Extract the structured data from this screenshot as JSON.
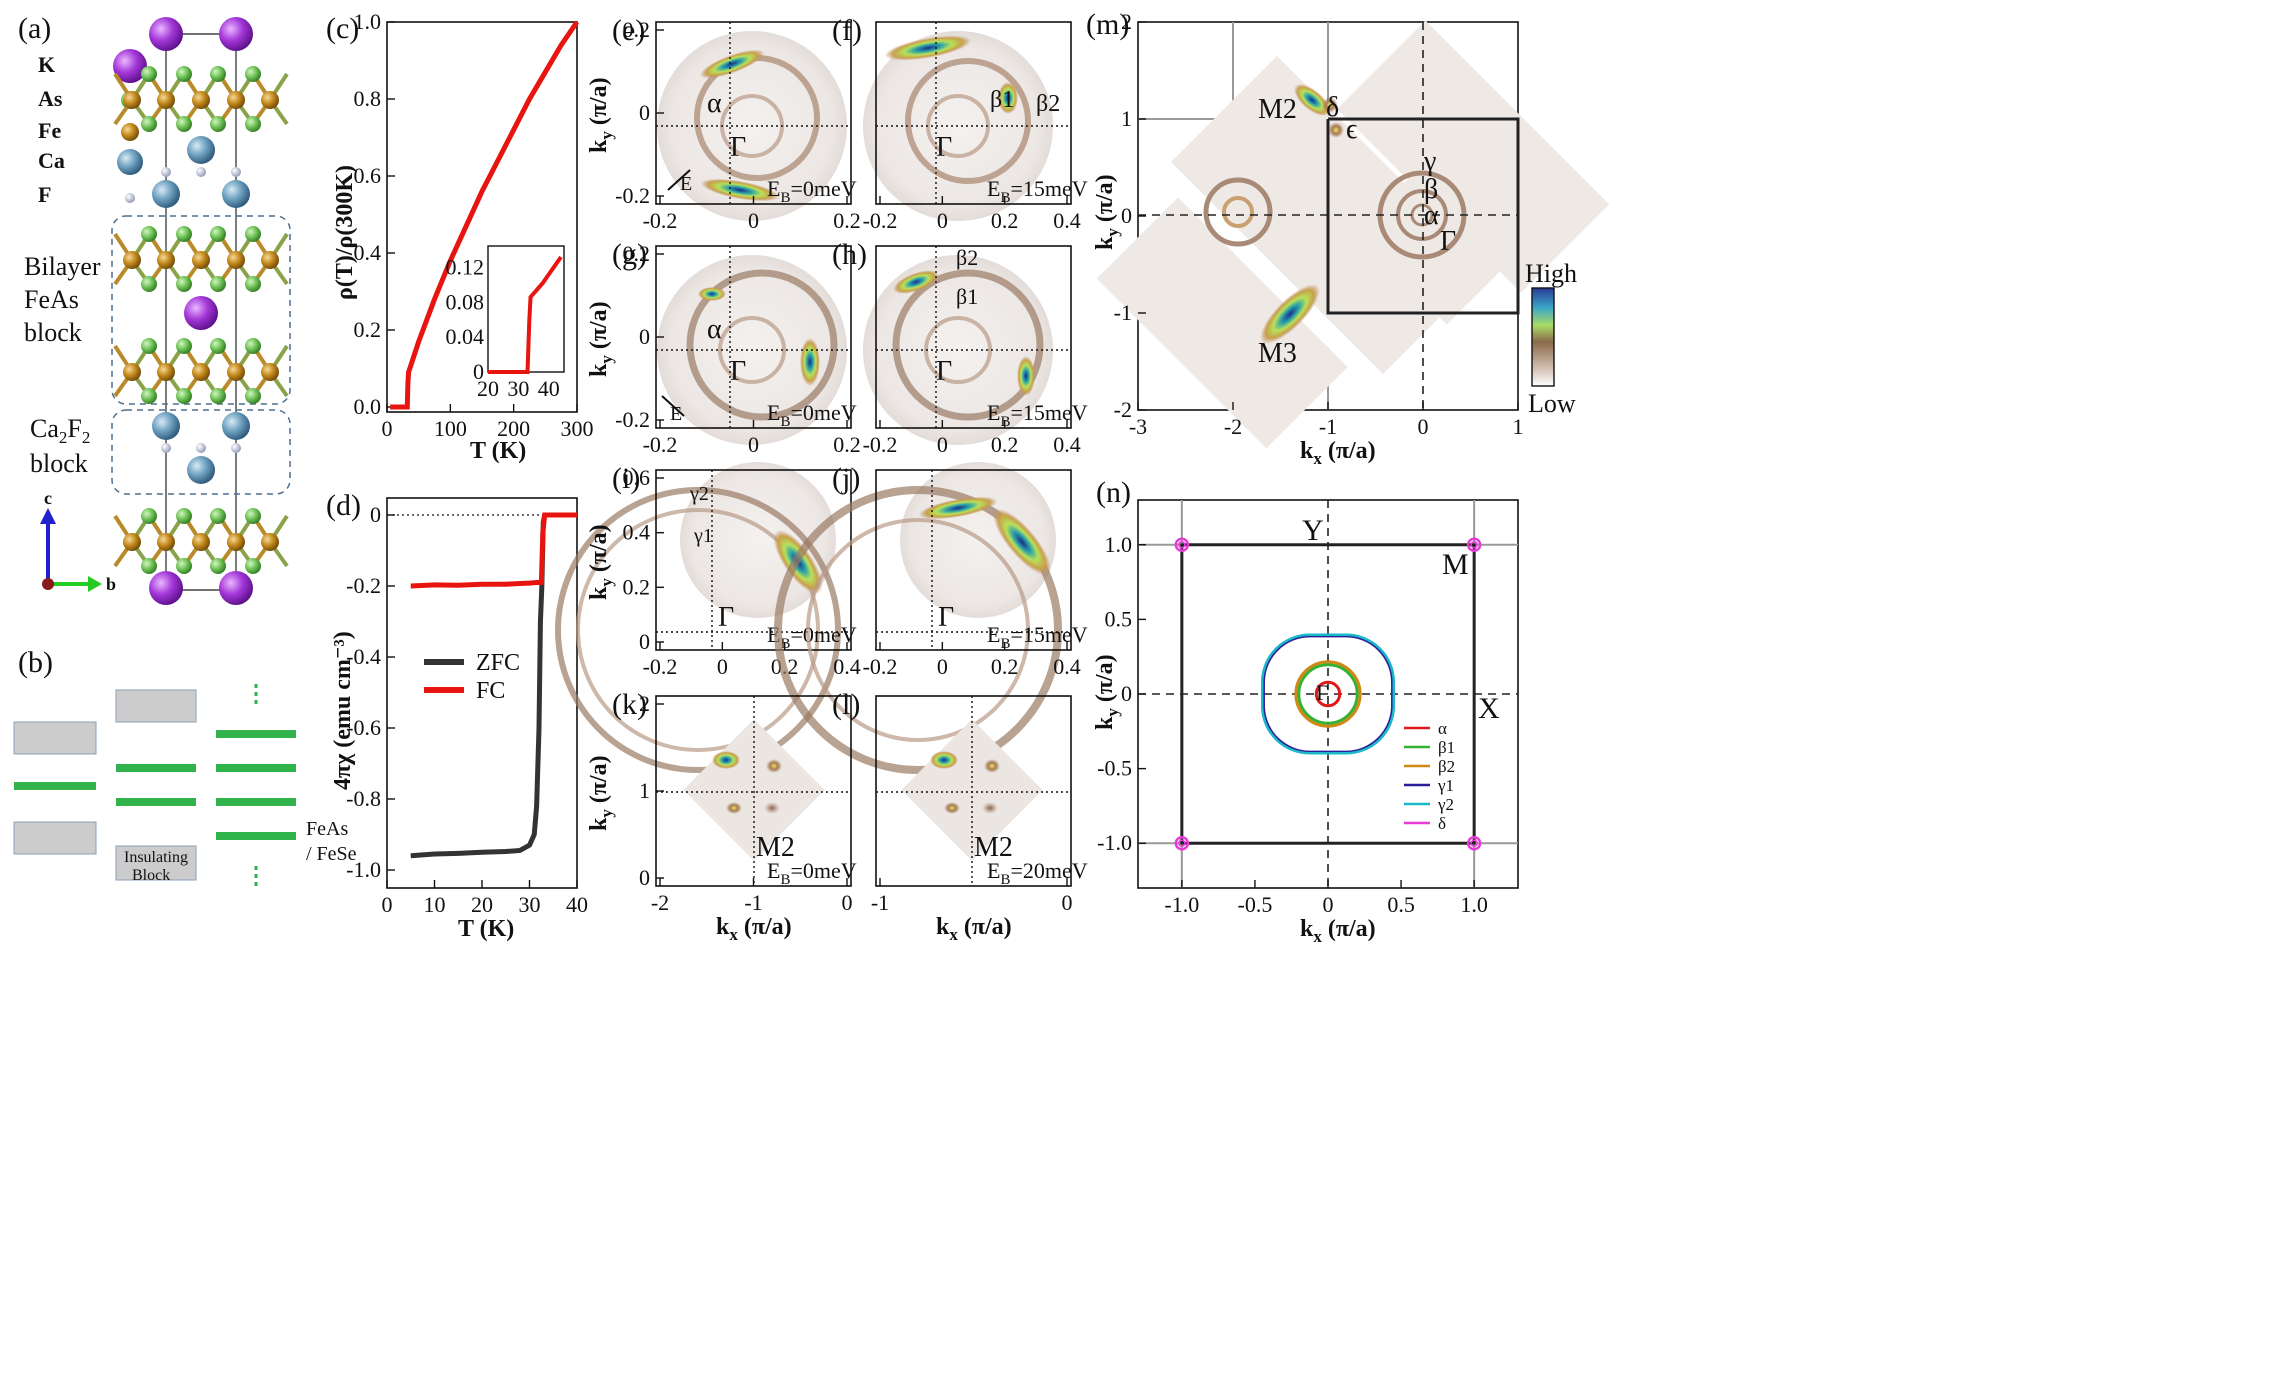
{
  "panels": {
    "a": "(a)",
    "b": "(b)",
    "c": "(c)",
    "d": "(d)",
    "e": "(e)",
    "f": "(f)",
    "g": "(g)",
    "h": "(h)",
    "i": "(i)",
    "j": "(j)",
    "k": "(k)",
    "l": "(l)",
    "m": "(m)",
    "n": "(n)"
  },
  "structure": {
    "legend": [
      "K",
      "As",
      "Fe",
      "Ca",
      "F"
    ],
    "bilayer_label": [
      "Bilayer",
      "FeAs",
      "block"
    ],
    "ca_label_main": "Ca",
    "ca_sub1": "2",
    "ca_f": "F",
    "ca_sub2": "2",
    "ca_label2": "block",
    "axis_c": "c",
    "axis_b": "b"
  },
  "schematic": {
    "insulating_label": [
      "Insulating",
      "Block"
    ],
    "feas_label": [
      "FeAs",
      "/ FeSe"
    ]
  },
  "colorbar": {
    "high": "High",
    "low": "Low"
  },
  "arpes": {
    "ky_label": "k",
    "ky_sub": "y",
    "kx_label": "k",
    "kx_sub": "x",
    "unit": " (π/a)",
    "gamma": "Γ",
    "E_label": "E",
    "eb": {
      "e": "E",
      "e_sub": "B",
      "e_val": "=0meV",
      "f_val": "=15meV",
      "g_val": "=0meV",
      "h_val": "=15meV",
      "i_val": "=0meV",
      "j_val": "=15meV",
      "k_val": "=0meV",
      "l_val": "=20meV"
    },
    "labels": {
      "alpha": "α",
      "beta1": "β1",
      "beta2": "β2",
      "gamma1": "γ1",
      "gamma2": "γ2",
      "M2": "M2",
      "M3": "M3",
      "delta": "δ",
      "eps": "ϵ",
      "gam": "γ",
      "bet": "β"
    }
  },
  "chart_data": [
    {
      "id": "c",
      "type": "line",
      "xlabel": "T (K)",
      "ylabel": "ρ(T)/ρ(300K)",
      "xlim": [
        0,
        300
      ],
      "ylim": [
        0,
        1.0
      ],
      "xticks": [
        "0",
        "100",
        "200",
        "300"
      ],
      "yticks": [
        "0.0",
        "0.2",
        "0.4",
        "0.6",
        "0.8",
        "1.0"
      ],
      "series": [
        {
          "name": "ρ(T)",
          "color": "#e8140f",
          "x": [
            5,
            25,
            32,
            33,
            34,
            36,
            50,
            75,
            100,
            125,
            150,
            175,
            200,
            225,
            250,
            275,
            300
          ],
          "y": [
            0,
            0,
            0,
            0.06,
            0.09,
            0.1,
            0.17,
            0.28,
            0.38,
            0.47,
            0.56,
            0.64,
            0.72,
            0.8,
            0.87,
            0.94,
            1.0
          ]
        }
      ],
      "inset": {
        "xlim": [
          20,
          45
        ],
        "ylim": [
          0,
          0.14
        ],
        "xticks": [
          "20",
          "30",
          "40"
        ],
        "yticks": [
          "0",
          "0.04",
          "0.08",
          "0.12"
        ],
        "x": [
          20,
          25,
          30,
          33,
          33.3,
          33.6,
          34,
          36,
          38,
          40,
          42,
          44
        ],
        "y": [
          0,
          0,
          0,
          0,
          0.03,
          0.06,
          0.086,
          0.094,
          0.102,
          0.112,
          0.122,
          0.132
        ]
      }
    },
    {
      "id": "d",
      "type": "line",
      "xlabel": "T (K)",
      "ylabel": "4πχ (emu cm⁻³)",
      "xlim": [
        0,
        40
      ],
      "ylim": [
        -1.0,
        0.0
      ],
      "xticks": [
        "0",
        "10",
        "20",
        "30",
        "40"
      ],
      "yticks": [
        "0",
        "-0.2",
        "-0.4",
        "-0.6",
        "-0.8",
        "-1.0"
      ],
      "legend": [
        "ZFC",
        "FC"
      ],
      "series": [
        {
          "name": "ZFC",
          "color": "#333333",
          "x": [
            5,
            10,
            15,
            20,
            25,
            28,
            30,
            31,
            31.5,
            32,
            32.3,
            32.6,
            32.9,
            33.2,
            34,
            36,
            38,
            40
          ],
          "y": [
            -0.96,
            -0.955,
            -0.953,
            -0.95,
            -0.948,
            -0.945,
            -0.93,
            -0.9,
            -0.82,
            -0.6,
            -0.3,
            -0.2,
            -0.02,
            0,
            0,
            0,
            0,
            0
          ]
        },
        {
          "name": "FC",
          "color": "#e8140f",
          "x": [
            5,
            10,
            15,
            20,
            25,
            28,
            30,
            31.5,
            32.5,
            32.8,
            33.2,
            34,
            36,
            38,
            40
          ],
          "y": [
            -0.2,
            -0.197,
            -0.198,
            -0.195,
            -0.195,
            -0.193,
            -0.192,
            -0.19,
            -0.19,
            -0.05,
            0,
            0,
            0,
            0,
            0
          ]
        }
      ]
    },
    {
      "id": "n",
      "type": "line",
      "xlabel": "kx (π/a)",
      "ylabel": "ky (π/a)",
      "xlim": [
        -1.3,
        1.3
      ],
      "ylim": [
        -1.3,
        1.3
      ],
      "xticks": [
        "-1.0",
        "-0.5",
        "0",
        "0.5",
        "1.0"
      ],
      "yticks": [
        "1.0",
        "0.5",
        "0",
        "-0.5",
        "-1.0"
      ],
      "points": {
        "Y": "Y",
        "M": "M",
        "X": "X",
        "G": "Γ"
      },
      "series": [
        {
          "name": "α",
          "color": "#e01818",
          "r": 0.08
        },
        {
          "name": "β1",
          "color": "#33b233",
          "r": 0.2
        },
        {
          "name": "β2",
          "color": "#d08a14",
          "r": 0.22
        },
        {
          "name": "γ1",
          "color": "#2a1f9a",
          "r": 0.44
        },
        {
          "name": "γ2",
          "color": "#1ab8c8",
          "r": 0.45
        },
        {
          "name": "δ",
          "color": "#e83ad8",
          "r": 0.02
        }
      ]
    },
    {
      "id": "m",
      "type": "heatmap",
      "xlabel": "kx (π/a)",
      "ylabel": "ky (π/a)",
      "xlim": [
        -3,
        1
      ],
      "ylim": [
        -2,
        2
      ],
      "xticks": [
        "-3",
        "-2",
        "-1",
        "0",
        "1"
      ],
      "yticks": [
        "2",
        "1",
        "0",
        "-1",
        "-2"
      ]
    }
  ],
  "arpes_ticks": {
    "e_y": [
      "0.2",
      "0",
      "-0.2"
    ],
    "e_x": [
      "-0.2",
      "0",
      "0.2"
    ],
    "f_x": [
      "-0.2",
      "0",
      "0.2",
      "0.4"
    ],
    "g_y": [
      "0.2",
      "0",
      "-0.2"
    ],
    "g_x": [
      "-0.2",
      "0",
      "0.2"
    ],
    "h_x": [
      "-0.2",
      "0",
      "0.2",
      "0.4"
    ],
    "i_y": [
      "0.6",
      "0.4",
      "0.2",
      "0"
    ],
    "i_x": [
      "-0.2",
      "0",
      "0.2",
      "0.4"
    ],
    "j_x": [
      "-0.2",
      "0",
      "0.2",
      "0.4"
    ],
    "k_y": [
      "2",
      "1",
      "0"
    ],
    "k_x": [
      "-2",
      "-1",
      "0"
    ],
    "l_x": [
      "-1",
      "0"
    ]
  }
}
